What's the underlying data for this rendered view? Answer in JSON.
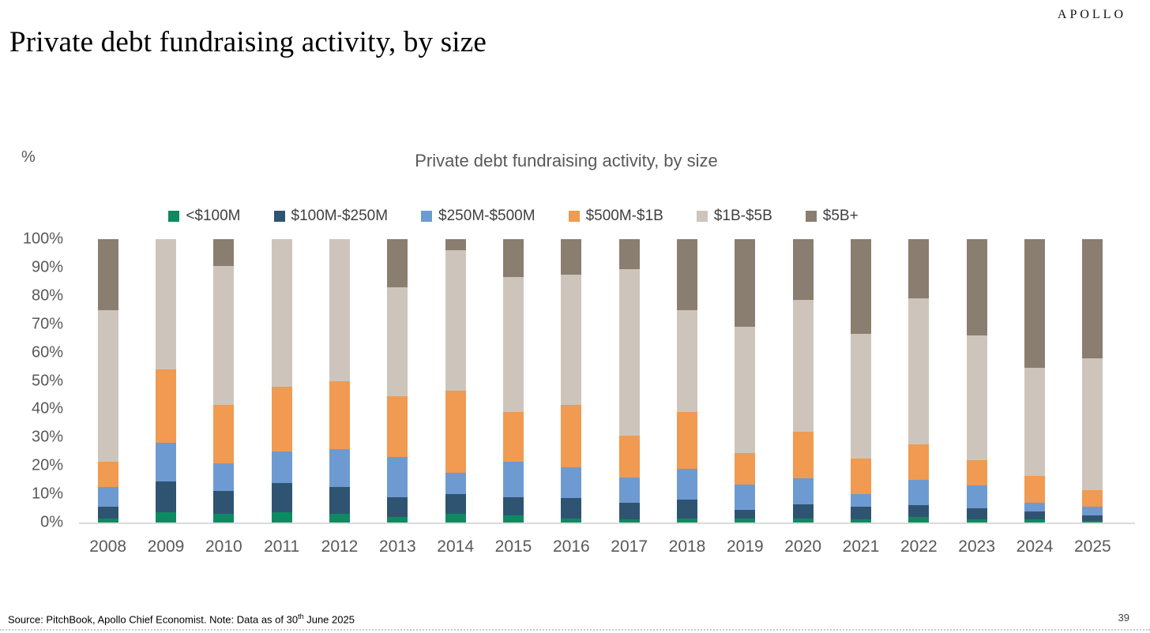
{
  "logo": "APOLLO",
  "page_title": "Private debt fundraising activity, by size",
  "page_number": "39",
  "source_note": {
    "prefix": "Source: PitchBook, Apollo Chief Economist. Note: Data as of 30",
    "superscript": "th",
    "suffix": " June 2025"
  },
  "chart_data": {
    "type": "bar",
    "stacked": true,
    "title": "Private debt fundraising activity, by size",
    "ylabel": "%",
    "xlabel": "",
    "ylim": [
      0,
      100
    ],
    "yticks": [
      0,
      10,
      20,
      30,
      40,
      50,
      60,
      70,
      80,
      90,
      100
    ],
    "ytick_suffix": "%",
    "grid": false,
    "legend_position": "top",
    "categories": [
      "2008",
      "2009",
      "2010",
      "2011",
      "2012",
      "2013",
      "2014",
      "2015",
      "2016",
      "2017",
      "2018",
      "2019",
      "2020",
      "2021",
      "2022",
      "2023",
      "2024",
      "2025"
    ],
    "series": [
      {
        "name": "<$100M",
        "color": "#0E8A62",
        "values": [
          1.5,
          3.5,
          3,
          3.5,
          3,
          2,
          3,
          2.5,
          1.5,
          1,
          1.5,
          1.5,
          1.5,
          1,
          2,
          1,
          1,
          0.5
        ]
      },
      {
        "name": "$100M-$250M",
        "color": "#2F5472",
        "values": [
          4,
          11,
          8,
          10.5,
          9.5,
          7,
          7,
          6.5,
          7,
          6,
          6.5,
          3,
          5,
          4.5,
          4,
          4,
          3,
          2
        ]
      },
      {
        "name": "$250M-$500M",
        "color": "#6D9BD1",
        "values": [
          7,
          13.5,
          10,
          11,
          13.5,
          14,
          7.5,
          12.5,
          11,
          9,
          11,
          9,
          9,
          4.5,
          9,
          8,
          3,
          3
        ]
      },
      {
        "name": "$500M-$1B",
        "color": "#F09A52",
        "values": [
          9,
          26,
          20.5,
          23,
          24,
          21.5,
          29,
          17.5,
          22,
          14.5,
          20,
          11,
          16.5,
          12.5,
          12.5,
          9,
          9.5,
          6
        ]
      },
      {
        "name": "$1B-$5B",
        "color": "#CDC5BB",
        "values": [
          53.5,
          46,
          49,
          52,
          50,
          38.5,
          49.5,
          47.5,
          46,
          59,
          36,
          44.5,
          46.5,
          44,
          51.5,
          44,
          38,
          46.5
        ]
      },
      {
        "name": "$5B+",
        "color": "#8A7E70",
        "values": [
          25,
          0,
          9.5,
          0,
          0,
          17,
          4,
          13.5,
          12.5,
          10.5,
          25,
          31,
          21.5,
          33.5,
          21,
          34,
          45.5,
          42
        ]
      }
    ]
  }
}
